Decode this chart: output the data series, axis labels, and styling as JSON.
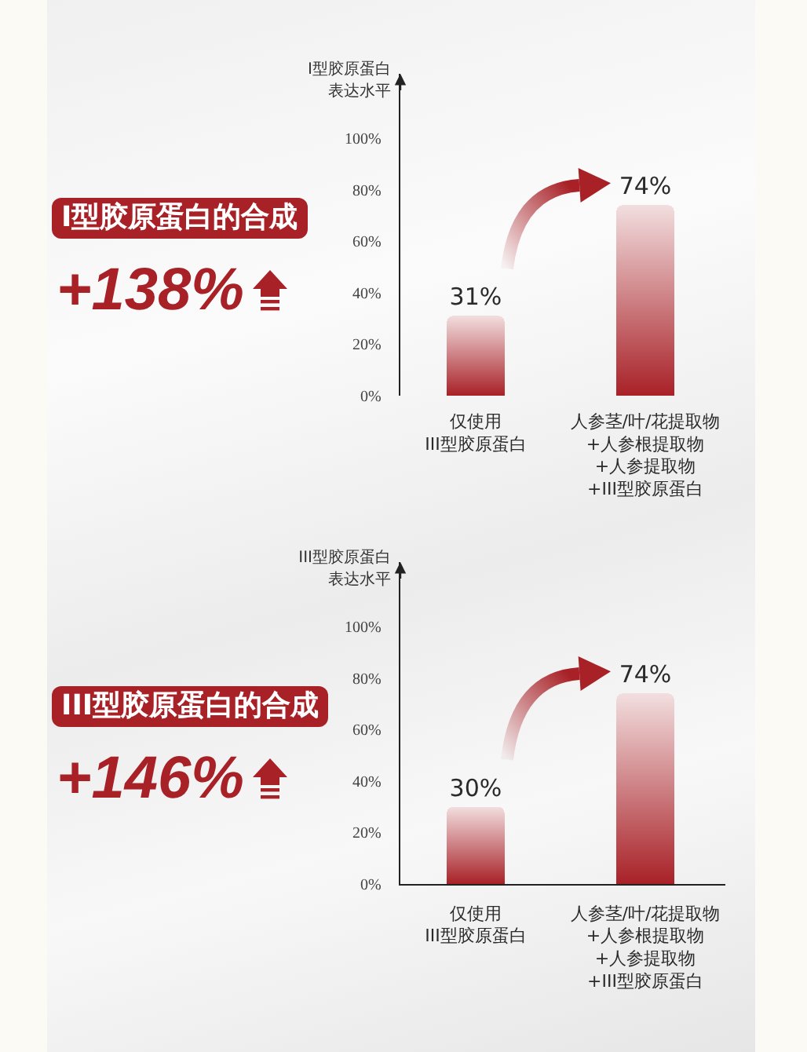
{
  "chart_data": [
    {
      "type": "bar",
      "ylabel": "I型胶原蛋白表达水平",
      "categories": [
        "仅使用\nIII型胶原蛋白",
        "人参茎/叶/花提取物\n+人参根提取物\n+人参提取物\n+III型胶原蛋白"
      ],
      "values": [
        31,
        74
      ],
      "value_labels": [
        "31%",
        "74%"
      ],
      "color": "#a82127",
      "ylim": [
        0,
        125
      ],
      "yticks": [
        {
          "value": 0,
          "label": "0%"
        },
        {
          "value": 20,
          "label": "20%"
        },
        {
          "value": 40,
          "label": "40%"
        },
        {
          "value": 60,
          "label": "60%"
        },
        {
          "value": 80,
          "label": "80%"
        },
        {
          "value": 100,
          "label": "100%"
        }
      ],
      "annotations": [
        "I型胶原蛋白的合成",
        "+138%"
      ]
    },
    {
      "type": "bar",
      "ylabel": "III型胶原蛋白表达水平",
      "categories": [
        "仅使用\nIII型胶原蛋白",
        "人参茎/叶/花提取物\n+人参根提取物\n+人参提取物\n+III型胶原蛋白"
      ],
      "values": [
        30,
        74
      ],
      "value_labels": [
        "30%",
        "74%"
      ],
      "color": "#a82127",
      "ylim": [
        0,
        125
      ],
      "yticks": [
        {
          "value": 0,
          "label": "0%"
        },
        {
          "value": 20,
          "label": "20%"
        },
        {
          "value": 40,
          "label": "40%"
        },
        {
          "value": 60,
          "label": "60%"
        },
        {
          "value": 80,
          "label": "80%"
        },
        {
          "value": 100,
          "label": "100%"
        }
      ],
      "annotations": [
        "III型胶原蛋白的合成",
        "+146%"
      ]
    }
  ]
}
